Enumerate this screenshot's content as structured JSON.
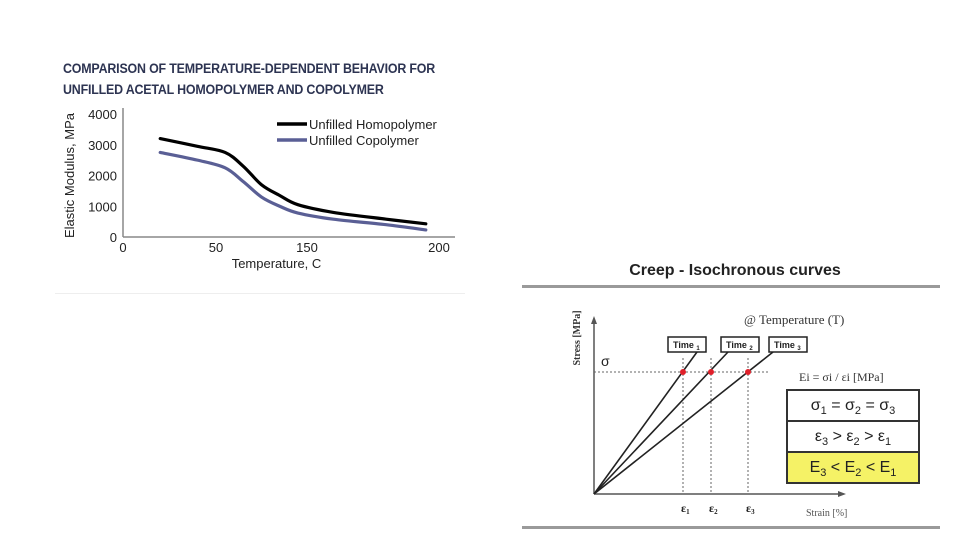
{
  "chart_data": [
    {
      "type": "line",
      "title": "COMPARISON OF TEMPERATURE-DEPENDENT BEHAVIOR FOR UNFILLED ACETAL HOMOPOLYMER AND COPOLYMER",
      "title_lines": [
        "COMPARISON OF TEMPERATURE-DEPENDENT BEHAVIOR FOR",
        "UNFILLED ACETAL HOMOPOLYMER AND COPOLYMER"
      ],
      "xlabel": "Temperature, C",
      "ylabel": "Elastic Modulus, MPa",
      "x_ticks": [
        "0",
        "50",
        "150",
        "200"
      ],
      "y_ticks": [
        "0",
        "1000",
        "2000",
        "3000",
        "4000"
      ],
      "ylim": [
        0,
        4000
      ],
      "grid": false,
      "legend_position": "upper right",
      "x": [
        20,
        40,
        60,
        80,
        100,
        120,
        140,
        160,
        180,
        195
      ],
      "series": [
        {
          "name": "Unfilled Homopolymer",
          "color": "#000000",
          "values": [
            3200,
            2950,
            2750,
            2300,
            1700,
            1350,
            1050,
            800,
            580,
            430
          ]
        },
        {
          "name": "Unfilled Copolymer",
          "color": "#5a5f95",
          "values": [
            2750,
            2500,
            2250,
            1800,
            1300,
            1000,
            780,
            580,
            400,
            230
          ]
        }
      ]
    },
    {
      "type": "line",
      "title": "Creep - Isochronous curves",
      "xlabel": "Strain [%]",
      "ylabel": "Stress [MPa]",
      "annotation_temperature": "@ Temperature (T)",
      "stress_level_label": "σ",
      "strain_marks": [
        "ε1",
        "ε2",
        "ε3"
      ],
      "series": [
        {
          "name": "Time 1",
          "label": "Time",
          "sub": "1"
        },
        {
          "name": "Time 2",
          "label": "Time",
          "sub": "2"
        },
        {
          "name": "Time 3",
          "label": "Time",
          "sub": "3"
        }
      ],
      "point_color": "#e0202a",
      "formula": "Ei = σi / εi   [MPa]",
      "relations": [
        {
          "text": "σ1 = σ2 = σ3",
          "highlight": false
        },
        {
          "text": "ε3 > ε2 > ε1",
          "highlight": false
        },
        {
          "text": "E3 < E2 < E1",
          "highlight": true
        }
      ]
    }
  ],
  "left": {
    "title_line1": "COMPARISON OF TEMPERATURE-DEPENDENT BEHAVIOR FOR",
    "title_line2": "UNFILLED ACETAL HOMOPOLYMER AND COPOLYMER"
  },
  "right": {
    "title": "Creep - Isochronous curves"
  }
}
